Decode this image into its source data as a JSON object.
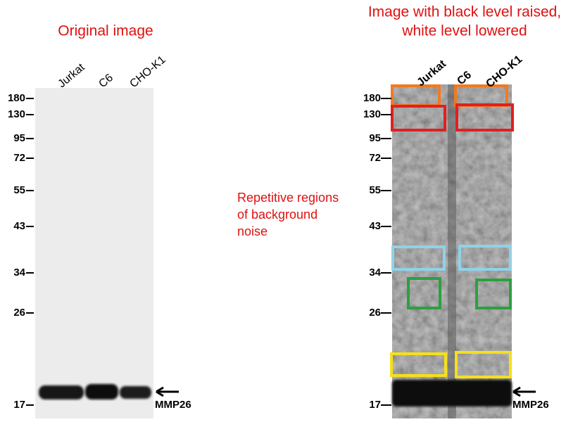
{
  "left_panel": {
    "title": "Original image",
    "lanes": [
      "Jurkat",
      "C6",
      "CHO-K1"
    ],
    "markers": [
      "180",
      "130",
      "95",
      "72",
      "55",
      "43",
      "34",
      "26",
      "17"
    ],
    "band_label": "MMP26"
  },
  "right_panel": {
    "title": [
      "Image with black level raised,",
      "white level lowered"
    ],
    "lanes": [
      "Jurkat",
      "C6",
      "CHO-K1"
    ],
    "markers": [
      "180",
      "130",
      "95",
      "72",
      "55",
      "43",
      "34",
      "26",
      "17"
    ],
    "band_label": "MMP26"
  },
  "annotation": [
    "Repetitive regions",
    "of background",
    "noise"
  ]
}
